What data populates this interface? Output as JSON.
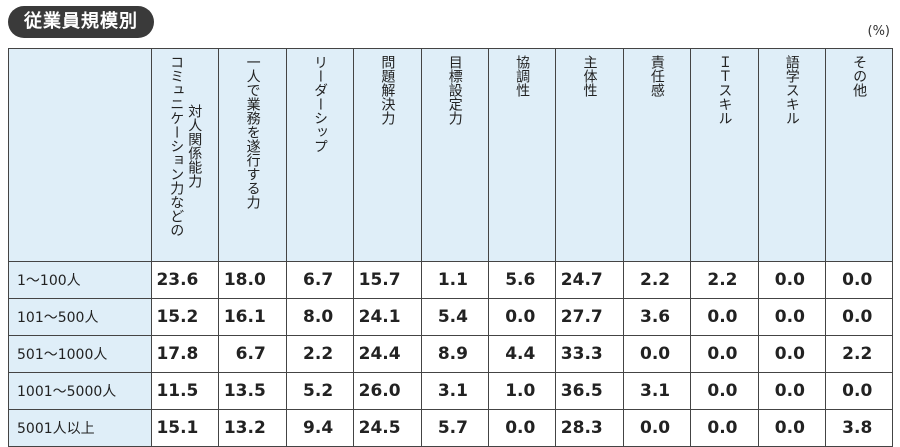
{
  "title": "従業員規模別",
  "unit": "(%)",
  "columns": [
    [
      "対人関係能力",
      "コミュニケーション力などの"
    ],
    [
      "一人で業務を遂行する力"
    ],
    [
      "リーダーシップ"
    ],
    [
      "問題解決力"
    ],
    [
      "目標設定力"
    ],
    [
      "協調性"
    ],
    [
      "主体性"
    ],
    [
      "責任感"
    ],
    [
      "ＩＴスキル"
    ],
    [
      "語学スキル"
    ],
    [
      "その他"
    ]
  ],
  "rows": [
    {
      "label": "1〜100人",
      "values": [
        "23.6",
        "18.0",
        "6.7",
        "15.7",
        "1.1",
        "5.6",
        "24.7",
        "2.2",
        "2.2",
        "0.0",
        "0.0"
      ]
    },
    {
      "label": "101〜500人",
      "values": [
        "15.2",
        "16.1",
        "8.0",
        "24.1",
        "5.4",
        "0.0",
        "27.7",
        "3.6",
        "0.0",
        "0.0",
        "0.0"
      ]
    },
    {
      "label": "501〜1000人",
      "values": [
        "17.8",
        "6.7",
        "2.2",
        "24.4",
        "8.9",
        "4.4",
        "33.3",
        "0.0",
        "0.0",
        "0.0",
        "2.2"
      ]
    },
    {
      "label": "1001〜5000人",
      "values": [
        "11.5",
        "13.5",
        "5.2",
        "26.0",
        "3.1",
        "1.0",
        "36.5",
        "3.1",
        "0.0",
        "0.0",
        "0.0"
      ]
    },
    {
      "label": "5001人以上",
      "values": [
        "15.1",
        "13.2",
        "9.4",
        "24.5",
        "5.7",
        "0.0",
        "28.3",
        "0.0",
        "0.0",
        "0.0",
        "3.8"
      ]
    }
  ]
}
